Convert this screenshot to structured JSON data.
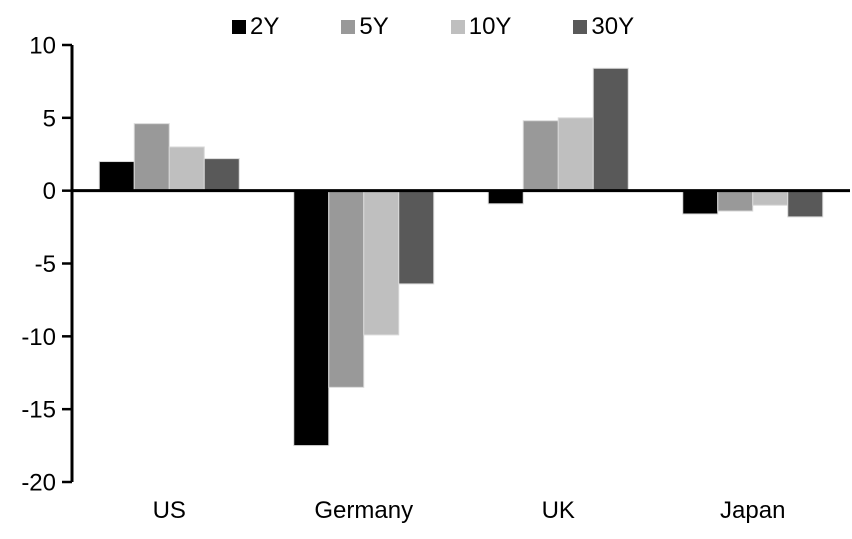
{
  "chart_data": {
    "type": "bar",
    "title": "",
    "xlabel": "",
    "ylabel": "",
    "categories": [
      "US",
      "Germany",
      "UK",
      "Japan"
    ],
    "series": [
      {
        "name": "2Y",
        "color": "#000000",
        "values": [
          2.0,
          -17.5,
          -0.9,
          -1.6
        ]
      },
      {
        "name": "5Y",
        "color": "#999999",
        "values": [
          4.6,
          -13.5,
          4.8,
          -1.4
        ]
      },
      {
        "name": "10Y",
        "color": "#bfbfbf",
        "values": [
          3.0,
          -9.9,
          5.0,
          -1.0
        ]
      },
      {
        "name": "30Y",
        "color": "#595959",
        "values": [
          2.2,
          -6.4,
          8.4,
          -1.8
        ]
      }
    ],
    "ylim": [
      -20,
      10
    ],
    "yticks": [
      10,
      5,
      0,
      -5,
      -10,
      -15,
      -20
    ],
    "grid": false,
    "legend_position": "top",
    "axis_color": "#000000",
    "bar_outline_color": "#d9d9d9"
  }
}
